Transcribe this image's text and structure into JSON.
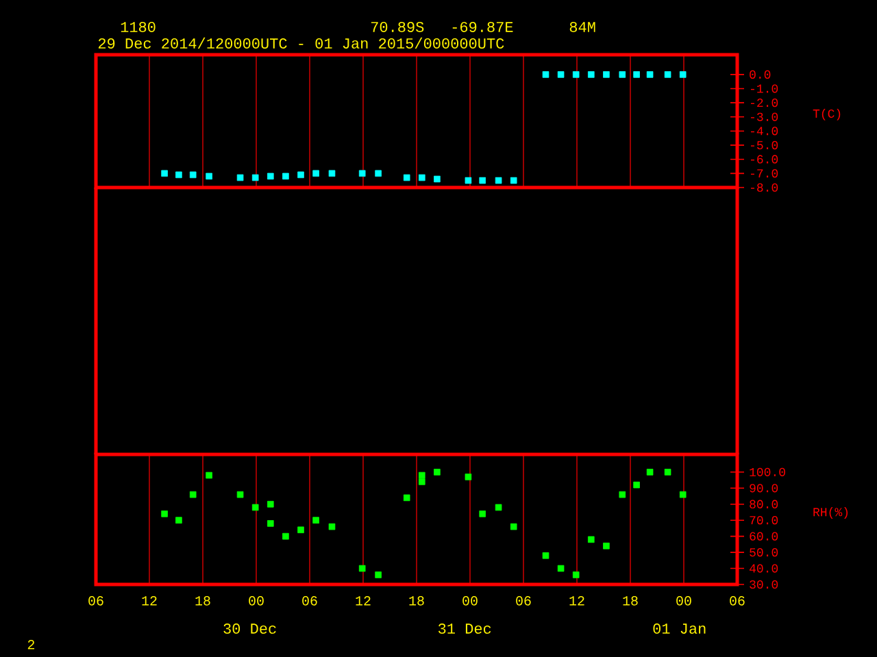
{
  "chart_data": [
    {
      "type": "scatter",
      "title": "29 Dec 2014/120000UTC - 01 Jan 2015/000000UTC",
      "annotations": [
        "1180",
        "70.89S",
        "-69.87E",
        "84M"
      ],
      "ylabel": "T(C)",
      "x": [
        13.7,
        15.3,
        16.9,
        18.7,
        22.2,
        23.9,
        25.6,
        27.3,
        29.0,
        30.7,
        32.5,
        35.9,
        37.7,
        40.9,
        42.6,
        44.3,
        47.8,
        49.4,
        51.2,
        52.9,
        56.5,
        58.2,
        59.9,
        61.6,
        63.3,
        65.1,
        66.7,
        68.2,
        70.2,
        71.9
      ],
      "series": [
        {
          "color": "#00ffff",
          "values": [
            -7.0,
            -7.1,
            -7.1,
            -7.2,
            -7.3,
            -7.3,
            -7.2,
            -7.2,
            -7.1,
            -7.0,
            -7.0,
            -7.0,
            -7.0,
            -7.3,
            -7.3,
            -7.4,
            -7.5,
            -7.5,
            -7.5,
            -7.5,
            0.0,
            0.0,
            0.0,
            0.0,
            0.0,
            0.0,
            0.0,
            0.0,
            0.0,
            0.0
          ]
        }
      ],
      "xlim": [
        6,
        78
      ],
      "xticks": [
        {
          "value": 6,
          "label": null
        },
        {
          "value": 12,
          "label": null
        },
        {
          "value": 18,
          "label": null
        },
        {
          "value": 24,
          "label": null
        },
        {
          "value": 30,
          "label": null
        },
        {
          "value": 36,
          "label": null
        },
        {
          "value": 42,
          "label": null
        },
        {
          "value": 48,
          "label": null
        },
        {
          "value": 54,
          "label": null
        },
        {
          "value": 60,
          "label": null
        },
        {
          "value": 66,
          "label": null
        },
        {
          "value": 72,
          "label": null
        },
        {
          "value": 78,
          "label": null
        }
      ],
      "ylim": [
        -8,
        1.4
      ],
      "yticks": [
        {
          "value": 0,
          "label": "0.0"
        },
        {
          "value": -1,
          "label": "-1.0"
        },
        {
          "value": -2,
          "label": "-2.0"
        },
        {
          "value": -3,
          "label": "-3.0"
        },
        {
          "value": -4,
          "label": "-4.0"
        },
        {
          "value": -5,
          "label": "-5.0"
        },
        {
          "value": -6,
          "label": "-6.0"
        },
        {
          "value": -7,
          "label": "-7.0"
        },
        {
          "value": -8,
          "label": "-8.0"
        }
      ],
      "grid": "x",
      "marker": "square",
      "tick_labels": "y"
    },
    {
      "type": "scatter",
      "ylabel": "RH(%)",
      "annotations": [
        "30 Dec",
        "31 Dec",
        "01 Jan",
        "2"
      ],
      "x": [
        13.7,
        15.3,
        16.9,
        18.7,
        22.2,
        23.9,
        25.6,
        25.6,
        27.3,
        29.0,
        30.7,
        32.5,
        35.9,
        37.7,
        40.9,
        42.6,
        42.6,
        44.3,
        47.8,
        49.4,
        51.2,
        52.9,
        56.5,
        58.2,
        59.9,
        61.6,
        63.3,
        65.1,
        66.7,
        68.2,
        70.2,
        71.9
      ],
      "series": [
        {
          "color": "#00ff00",
          "values": [
            74,
            70,
            86,
            98,
            86,
            78,
            80,
            68,
            60,
            64,
            70,
            66,
            40,
            36,
            84,
            98,
            94,
            100,
            97,
            74,
            78,
            66,
            48,
            40,
            36,
            58,
            54,
            86,
            92,
            100,
            100,
            86
          ]
        }
      ],
      "xlim": [
        6,
        78
      ],
      "xticks": [
        {
          "value": 6,
          "label": "06"
        },
        {
          "value": 12,
          "label": "12"
        },
        {
          "value": 18,
          "label": "18"
        },
        {
          "value": 24,
          "label": "00"
        },
        {
          "value": 30,
          "label": "06"
        },
        {
          "value": 36,
          "label": "12"
        },
        {
          "value": 42,
          "label": "18"
        },
        {
          "value": 48,
          "label": "00"
        },
        {
          "value": 54,
          "label": "06"
        },
        {
          "value": 60,
          "label": "12"
        },
        {
          "value": 66,
          "label": "18"
        },
        {
          "value": 72,
          "label": "00"
        },
        {
          "value": 78,
          "label": "06"
        }
      ],
      "ylim": [
        30,
        111
      ],
      "yticks": [
        {
          "value": 30,
          "label": "30.0"
        },
        {
          "value": 40,
          "label": "40.0"
        },
        {
          "value": 50,
          "label": "50.0"
        },
        {
          "value": 60,
          "label": "60.0"
        },
        {
          "value": 70,
          "label": "70.0"
        },
        {
          "value": 80,
          "label": "80.0"
        },
        {
          "value": 90,
          "label": "90.0"
        },
        {
          "value": 100,
          "label": "100.0"
        }
      ],
      "grid": "x",
      "marker": "square"
    }
  ]
}
